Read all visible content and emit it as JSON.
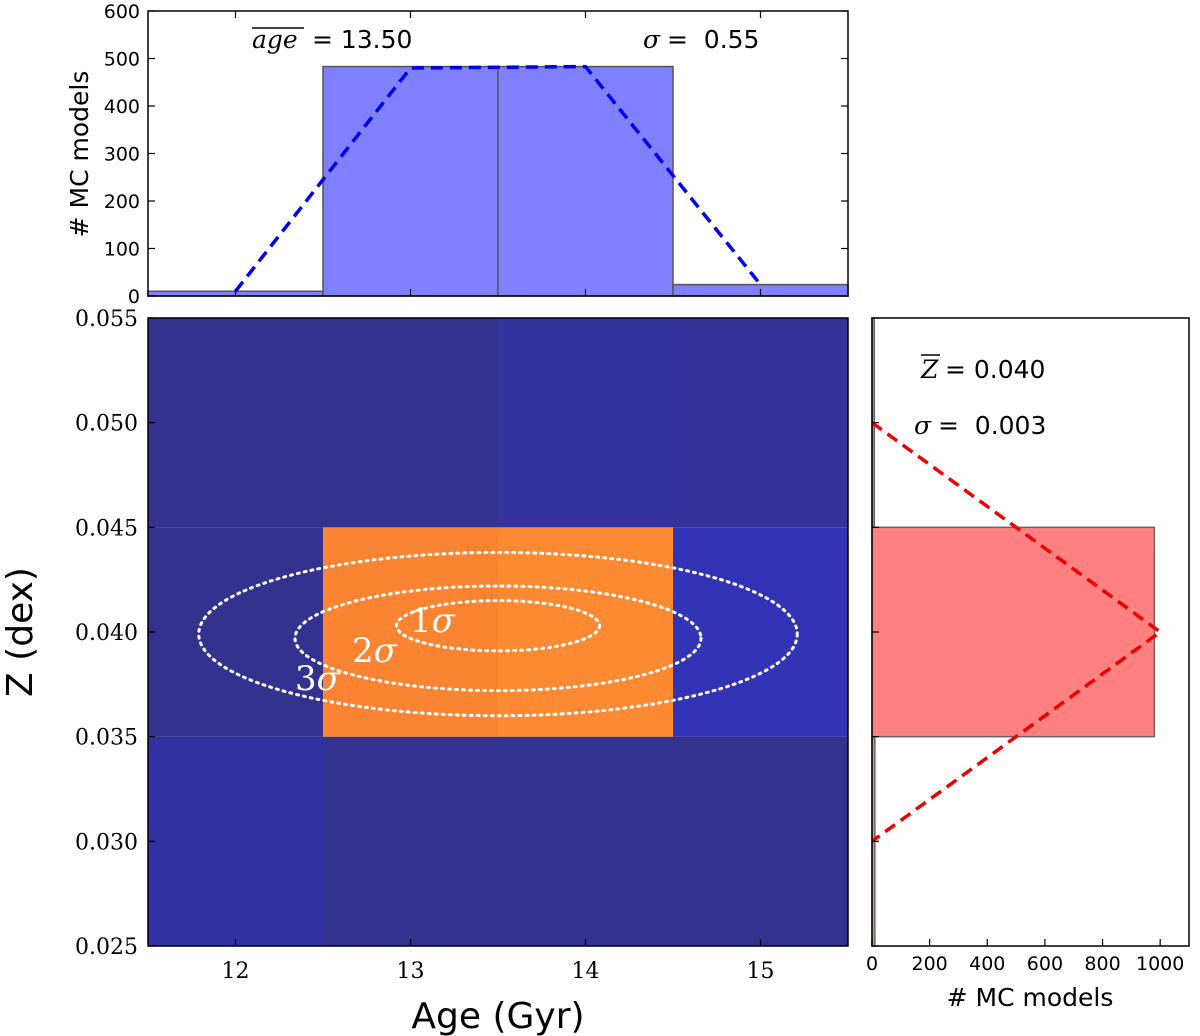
{
  "chart_data": [
    {
      "id": "age-histogram",
      "type": "bar",
      "ylabel": "# MC models",
      "xlim": [
        11.5,
        15.5
      ],
      "ylim": [
        0,
        600
      ],
      "yticks": [
        0,
        100,
        200,
        300,
        400,
        500,
        600
      ],
      "bins": [
        {
          "x0": 11.5,
          "x1": 12.5,
          "count": 10
        },
        {
          "x0": 12.5,
          "x1": 13.5,
          "count": 483
        },
        {
          "x0": 13.5,
          "x1": 14.5,
          "count": 483
        },
        {
          "x0": 14.5,
          "x1": 15.5,
          "count": 24
        }
      ],
      "fit_line": {
        "style": "dashed",
        "x": [
          12,
          13,
          14,
          15
        ],
        "y": [
          10,
          480,
          483,
          24
        ]
      },
      "annotations": {
        "mean_symbol": "age",
        "mean_text": " = 13.50",
        "sigma_symbol": "σ",
        "sigma_text": " =  0.55"
      },
      "colors": {
        "bar": "#8080ff",
        "line": "#0000ee"
      }
    },
    {
      "id": "age-metallicity-map",
      "type": "heatmap",
      "xlabel": "Age (Gyr)",
      "ylabel": "Z (dex)",
      "xlim": [
        11.5,
        15.5
      ],
      "ylim": [
        0.025,
        0.055
      ],
      "xticks": [
        12,
        13,
        14,
        15
      ],
      "ytick_labels": [
        "0.025",
        "0.030",
        "0.035",
        "0.040",
        "0.045",
        "0.050",
        "0.055"
      ],
      "yticks": [
        0.025,
        0.03,
        0.035,
        0.04,
        0.045,
        0.05,
        0.055
      ],
      "cells": [
        {
          "x0": 11.5,
          "x1": 12.5,
          "y0": 0.025,
          "y1": 0.035,
          "color": "#3131a3"
        },
        {
          "x0": 12.5,
          "x1": 13.5,
          "y0": 0.025,
          "y1": 0.035,
          "color": "#33338f"
        },
        {
          "x0": 13.5,
          "x1": 14.5,
          "y0": 0.025,
          "y1": 0.035,
          "color": "#33338f"
        },
        {
          "x0": 14.5,
          "x1": 15.5,
          "y0": 0.025,
          "y1": 0.035,
          "color": "#33338f"
        },
        {
          "x0": 11.5,
          "x1": 12.5,
          "y0": 0.035,
          "y1": 0.045,
          "color": "#33338f"
        },
        {
          "x0": 12.5,
          "x1": 13.5,
          "y0": 0.035,
          "y1": 0.045,
          "color": "#fb8432"
        },
        {
          "x0": 13.5,
          "x1": 14.5,
          "y0": 0.035,
          "y1": 0.045,
          "color": "#fc8a33"
        },
        {
          "x0": 14.5,
          "x1": 15.5,
          "y0": 0.035,
          "y1": 0.045,
          "color": "#3333b5"
        },
        {
          "x0": 11.5,
          "x1": 12.5,
          "y0": 0.045,
          "y1": 0.055,
          "color": "#33338f"
        },
        {
          "x0": 12.5,
          "x1": 13.5,
          "y0": 0.045,
          "y1": 0.055,
          "color": "#33338f"
        },
        {
          "x0": 13.5,
          "x1": 14.5,
          "y0": 0.045,
          "y1": 0.055,
          "color": "#3333a0"
        },
        {
          "x0": 14.5,
          "x1": 15.5,
          "y0": 0.045,
          "y1": 0.055,
          "color": "#33339a"
        }
      ],
      "contours": [
        {
          "label_num": "1",
          "label_sym": "σ",
          "center": [
            13.5,
            0.0403
          ],
          "half_width": [
            0.58,
            0.0012
          ]
        },
        {
          "label_num": "2",
          "label_sym": "σ",
          "center": [
            13.5,
            0.0397
          ],
          "half_width": [
            1.16,
            0.0025
          ]
        },
        {
          "label_num": "3",
          "label_sym": "σ",
          "center": [
            13.5,
            0.0399
          ],
          "half_width": [
            1.71,
            0.0039
          ]
        }
      ],
      "colors": {
        "contour": "#ffffff"
      }
    },
    {
      "id": "metallicity-histogram",
      "type": "bar",
      "orientation": "horizontal",
      "xlabel": "# MC models",
      "xlim": [
        0,
        1100
      ],
      "xticks": [
        0,
        200,
        400,
        600,
        800,
        1000
      ],
      "ylim": [
        0.025,
        0.055
      ],
      "bins": [
        {
          "y0": 0.025,
          "y1": 0.035,
          "count": 10
        },
        {
          "y0": 0.035,
          "y1": 0.045,
          "count": 980
        },
        {
          "y0": 0.045,
          "y1": 0.055,
          "count": 8
        }
      ],
      "fit_line": {
        "style": "dashed",
        "x": [
          0,
          1000,
          0
        ],
        "y": [
          0.05,
          0.04,
          0.03
        ]
      },
      "annotations": {
        "mean_symbol": "Z",
        "mean_text": " = 0.040",
        "sigma_symbol": "σ",
        "sigma_text": " =  0.003"
      },
      "colors": {
        "bar": "#ff8080",
        "line": "#ee0000"
      }
    }
  ]
}
